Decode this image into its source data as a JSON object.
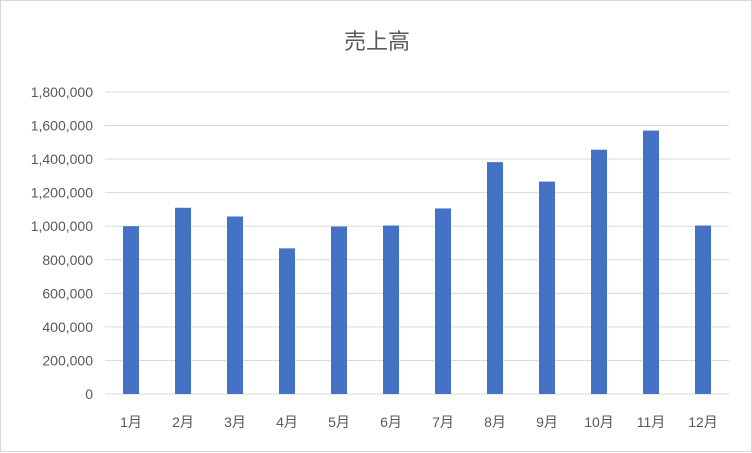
{
  "chart_data": {
    "type": "bar",
    "title": "売上高",
    "categories": [
      "1月",
      "2月",
      "3月",
      "4月",
      "5月",
      "6月",
      "7月",
      "8月",
      "9月",
      "10月",
      "11月",
      "12月"
    ],
    "values": [
      1000000,
      1110000,
      1058000,
      868000,
      998000,
      1004000,
      1106000,
      1382000,
      1266000,
      1456000,
      1570000,
      1004000
    ],
    "ylim": [
      0,
      1800000
    ],
    "yticks": [
      0,
      200000,
      400000,
      600000,
      800000,
      1000000,
      1200000,
      1400000,
      1600000,
      1800000
    ],
    "ytick_labels": [
      "0",
      "200,000",
      "400,000",
      "600,000",
      "800,000",
      "1,000,000",
      "1,200,000",
      "1,400,000",
      "1,600,000",
      "1,800,000"
    ],
    "bar_color": "#4472c4",
    "grid_color": "#d9d9d9",
    "grid": true,
    "legend": "none"
  }
}
